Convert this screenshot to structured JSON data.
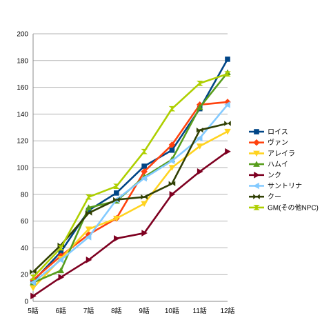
{
  "chart_data": {
    "type": "line",
    "title": "",
    "xlabel": "",
    "ylabel": "",
    "ylim": [
      0,
      200
    ],
    "y_ticks": [
      0,
      20,
      40,
      60,
      80,
      100,
      120,
      140,
      160,
      180,
      200
    ],
    "grid": "horizontal",
    "legend_position": "right",
    "categories": [
      "5話",
      "6話",
      "7話",
      "8話",
      "9話",
      "10話",
      "11話",
      "12話"
    ],
    "series": [
      {
        "name": "ロイス",
        "color": "#004586",
        "marker": "square",
        "values": [
          15,
          37,
          68,
          81,
          101,
          113,
          144,
          181
        ]
      },
      {
        "name": "ヴァン",
        "color": "#ff420e",
        "marker": "diamond",
        "values": [
          16,
          34,
          50,
          62,
          97,
          117,
          147,
          149
        ]
      },
      {
        "name": "アレイラ",
        "color": "#ffd320",
        "marker": "triangle-down",
        "values": [
          10,
          32,
          54,
          62,
          73,
          100,
          116,
          127
        ]
      },
      {
        "name": "ハムイ",
        "color": "#579d1c",
        "marker": "triangle-up",
        "values": [
          14,
          23,
          70,
          75,
          93,
          106,
          145,
          171
        ]
      },
      {
        "name": "ンク",
        "color": "#7e0021",
        "marker": "triangle-right",
        "values": [
          4,
          18,
          31,
          47,
          51,
          80,
          97,
          112
        ]
      },
      {
        "name": "サントリナ",
        "color": "#83caff",
        "marker": "triangle-left",
        "values": [
          14,
          31,
          48,
          76,
          92,
          105,
          122,
          147
        ]
      },
      {
        "name": "クー",
        "color": "#314004",
        "marker": "bowtie",
        "values": [
          22,
          42,
          66,
          76,
          78,
          88,
          128,
          133
        ]
      },
      {
        "name": "GM(その他NPC)",
        "color": "#aecf00",
        "marker": "hourglass",
        "values": [
          18,
          40,
          78,
          86,
          112,
          144,
          163,
          170
        ]
      }
    ]
  }
}
